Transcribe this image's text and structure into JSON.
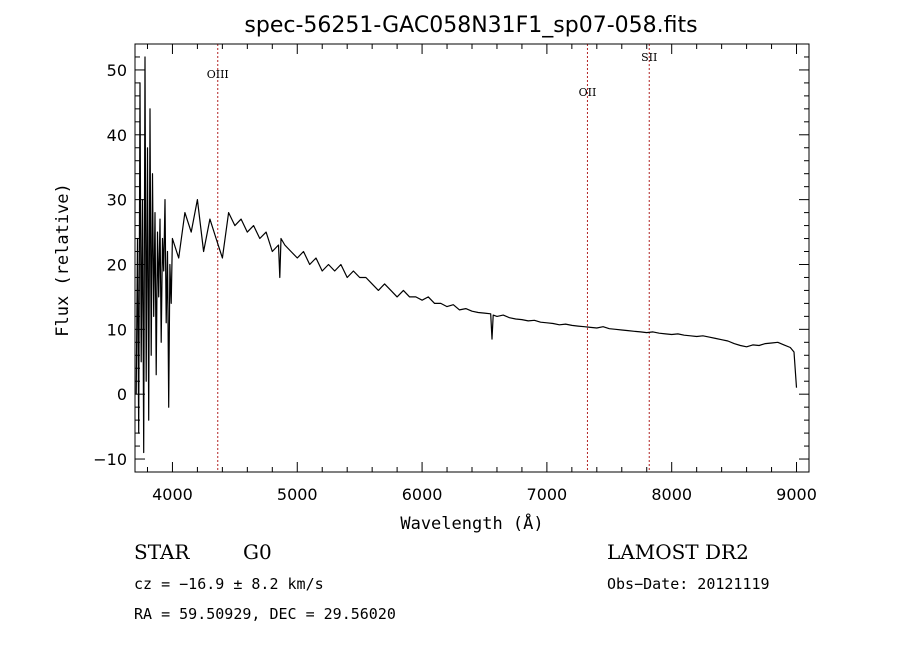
{
  "chart_data": {
    "type": "line",
    "title": "spec-56251-GAC058N31F1_sp07-058.fits",
    "xlabel": "Wavelength (Å)",
    "ylabel": "Flux (relative)",
    "xlim": [
      3700,
      9100
    ],
    "ylim": [
      -12,
      54
    ],
    "xticks": [
      4000,
      5000,
      6000,
      7000,
      8000,
      9000
    ],
    "yticks": [
      -10,
      0,
      10,
      20,
      30,
      40,
      50
    ],
    "grid": false,
    "line_color": "#000000",
    "marker_color": "#b22222",
    "spectral_lines": [
      {
        "name": "OIII",
        "wavelength": 4363
      },
      {
        "name": "OII",
        "wavelength": 7325
      },
      {
        "name": "SII",
        "wavelength": 7820
      }
    ],
    "series": [
      {
        "x": [
          3710,
          3720,
          3730,
          3740,
          3750,
          3760,
          3770,
          3780,
          3790,
          3800,
          3810,
          3820,
          3830,
          3840,
          3850,
          3860,
          3870,
          3880,
          3890,
          3900,
          3910,
          3920,
          3930,
          3940,
          3950,
          3960,
          3970,
          3980,
          3990,
          4000,
          4050,
          4100,
          4150,
          4200,
          4250,
          4300,
          4350,
          4400,
          4450,
          4500,
          4550,
          4600,
          4650,
          4700,
          4750,
          4800,
          4850,
          4860,
          4870,
          4900,
          4950,
          5000,
          5050,
          5100,
          5150,
          5200,
          5250,
          5300,
          5350,
          5400,
          5450,
          5500,
          5550,
          5600,
          5650,
          5700,
          5750,
          5800,
          5850,
          5900,
          5950,
          6000,
          6050,
          6100,
          6150,
          6200,
          6250,
          6300,
          6350,
          6400,
          6450,
          6500,
          6550,
          6560,
          6570,
          6600,
          6650,
          6700,
          6750,
          6800,
          6850,
          6900,
          6950,
          7000,
          7050,
          7100,
          7150,
          7200,
          7250,
          7300,
          7350,
          7400,
          7450,
          7500,
          7550,
          7600,
          7650,
          7700,
          7750,
          7800,
          7850,
          7900,
          7950,
          8000,
          8050,
          8100,
          8150,
          8200,
          8250,
          8300,
          8350,
          8400,
          8450,
          8500,
          8550,
          8600,
          8650,
          8700,
          8750,
          8800,
          8850,
          8900,
          8950,
          8980,
          9000
        ],
        "y": [
          0,
          24,
          -6,
          48,
          5,
          30,
          -9,
          52,
          2,
          38,
          -4,
          44,
          6,
          34,
          12,
          28,
          3,
          25,
          15,
          27,
          8,
          24,
          19,
          30,
          11,
          22,
          -2,
          20,
          14,
          24,
          21,
          28,
          25,
          30,
          22,
          27,
          24,
          21,
          28,
          26,
          27,
          25,
          26,
          24,
          25,
          22,
          23,
          18,
          24,
          23,
          22,
          21,
          22,
          20,
          21,
          19,
          20,
          19,
          20,
          18,
          19,
          18,
          18,
          17,
          16,
          17,
          16,
          15,
          16,
          15,
          15,
          14.5,
          15,
          14,
          14,
          13.5,
          13.8,
          13,
          13.2,
          12.8,
          12.6,
          12.5,
          12.4,
          8.5,
          12.2,
          12.0,
          12.2,
          11.8,
          11.6,
          11.5,
          11.3,
          11.4,
          11.1,
          11.0,
          10.9,
          10.7,
          10.8,
          10.6,
          10.5,
          10.4,
          10.3,
          10.2,
          10.4,
          10.1,
          10.0,
          9.9,
          9.8,
          9.7,
          9.6,
          9.5,
          9.6,
          9.4,
          9.3,
          9.2,
          9.3,
          9.1,
          9.0,
          8.9,
          9.0,
          8.8,
          8.6,
          8.4,
          8.2,
          7.8,
          7.5,
          7.3,
          7.6,
          7.5,
          7.8,
          7.9,
          8.0,
          7.6,
          7.2,
          6.5,
          1.0
        ]
      }
    ]
  },
  "footer": {
    "object_class": "STAR",
    "subclass": "G0",
    "survey": "LAMOST DR2",
    "redshift_line": "cz = −16.9 ± 8.2 km/s",
    "obs_date_line": "Obs−Date: 20121119",
    "coords_line": "RA =  59.50929, DEC =  29.56020"
  }
}
